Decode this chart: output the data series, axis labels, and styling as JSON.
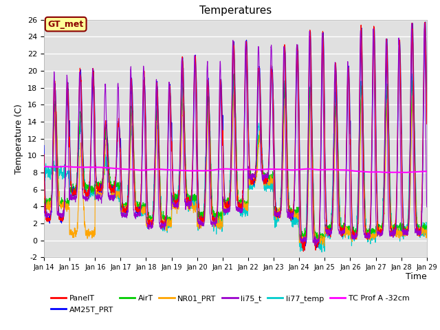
{
  "title": "Temperatures",
  "xlabel": "Time",
  "ylabel": "Temperature (C)",
  "xlim_days": [
    14,
    29
  ],
  "ylim": [
    -2,
    26
  ],
  "yticks": [
    -2,
    0,
    2,
    4,
    6,
    8,
    10,
    12,
    14,
    16,
    18,
    20,
    22,
    24,
    26
  ],
  "xtick_labels": [
    "Jan 14",
    "Jan 15",
    "Jan 16",
    "Jan 17",
    "Jan 18",
    "Jan 19",
    "Jan 20",
    "Jan 21",
    "Jan 22",
    "Jan 23",
    "Jan 24",
    "Jan 25",
    "Jan 26",
    "Jan 27",
    "Jan 28",
    "Jan 29"
  ],
  "annotation_text": "GT_met",
  "annotation_color": "#8B0000",
  "annotation_bg": "#FFFF99",
  "series_colors": {
    "PanelT": "#FF0000",
    "AM25T_PRT": "#0000FF",
    "AirT": "#00CC00",
    "NR01_PRT": "#FFA500",
    "li75_t": "#9900CC",
    "li77_temp": "#00CCCC",
    "TC Prof A -32cm": "#FF00FF"
  },
  "bg_color": "#E0E0E0",
  "grid_color": "#FFFFFF"
}
